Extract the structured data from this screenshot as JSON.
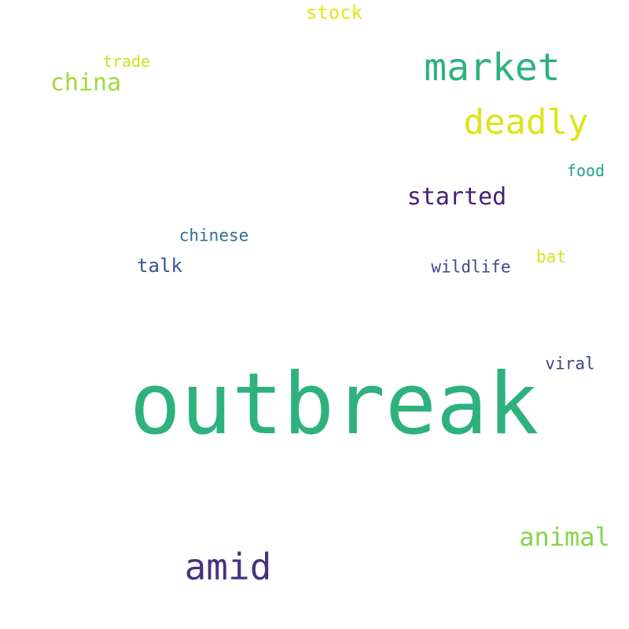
{
  "words": [
    {
      "key": "outbreak",
      "text": "outbreak",
      "color": "#2db27d"
    },
    {
      "key": "market",
      "text": "market",
      "color": "#2db27d"
    },
    {
      "key": "deadly",
      "text": "deadly",
      "color": "#dfe318"
    },
    {
      "key": "amid",
      "text": "amid",
      "color": "#46337e"
    },
    {
      "key": "china",
      "text": "china",
      "color": "#a0da39"
    },
    {
      "key": "animal",
      "text": "animal",
      "color": "#86d549"
    },
    {
      "key": "started",
      "text": "started",
      "color": "#482173"
    },
    {
      "key": "stock",
      "text": "stock",
      "color": "#e5e419"
    },
    {
      "key": "talk",
      "text": "talk",
      "color": "#3b528b"
    },
    {
      "key": "chinese",
      "text": "chinese",
      "color": "#2c728e"
    },
    {
      "key": "wildlife",
      "text": "wildlife",
      "color": "#3e4a89"
    },
    {
      "key": "bat",
      "text": "bat",
      "color": "#d8e219"
    },
    {
      "key": "viral",
      "text": "viral",
      "color": "#414487"
    },
    {
      "key": "trade",
      "text": "trade",
      "color": "#cde11d"
    },
    {
      "key": "food",
      "text": "food",
      "color": "#1fa187"
    }
  ]
}
